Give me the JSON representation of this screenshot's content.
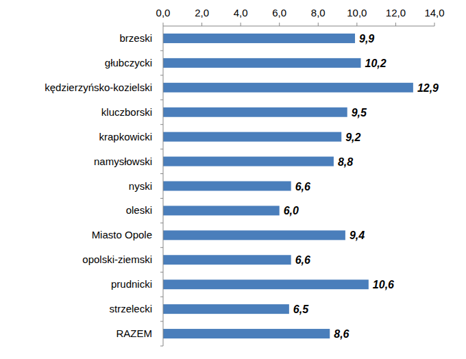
{
  "chart_data": {
    "type": "bar",
    "orientation": "horizontal",
    "categories": [
      "brzeski",
      "głubczycki",
      "kędzierzyńsko-kozielski",
      "kluczborski",
      "krapkowicki",
      "namysłowski",
      "nyski",
      "oleski",
      "Miasto Opole",
      "opolski-ziemski",
      "prudnicki",
      "strzelecki",
      "RAZEM"
    ],
    "values": [
      9.9,
      10.2,
      12.9,
      9.5,
      9.2,
      8.8,
      6.6,
      6.0,
      9.4,
      6.6,
      10.6,
      6.5,
      8.6
    ],
    "value_labels": [
      "9,9",
      "10,2",
      "12,9",
      "9,5",
      "9,2",
      "8,8",
      "6,6",
      "6,0",
      "9,4",
      "6,6",
      "10,6",
      "6,5",
      "8,6"
    ],
    "color": "#4a7ebb",
    "xlim": [
      0,
      14
    ],
    "xticks": [
      {
        "value": 0,
        "label": "0,0"
      },
      {
        "value": 2,
        "label": "2,0"
      },
      {
        "value": 4,
        "label": "4,0"
      },
      {
        "value": 6,
        "label": "6,0"
      },
      {
        "value": 8,
        "label": "8,0"
      },
      {
        "value": 10,
        "label": "10,0"
      },
      {
        "value": 12,
        "label": "12,0"
      },
      {
        "value": 14,
        "label": "14,0"
      }
    ],
    "grid": false,
    "data_labels": true
  }
}
